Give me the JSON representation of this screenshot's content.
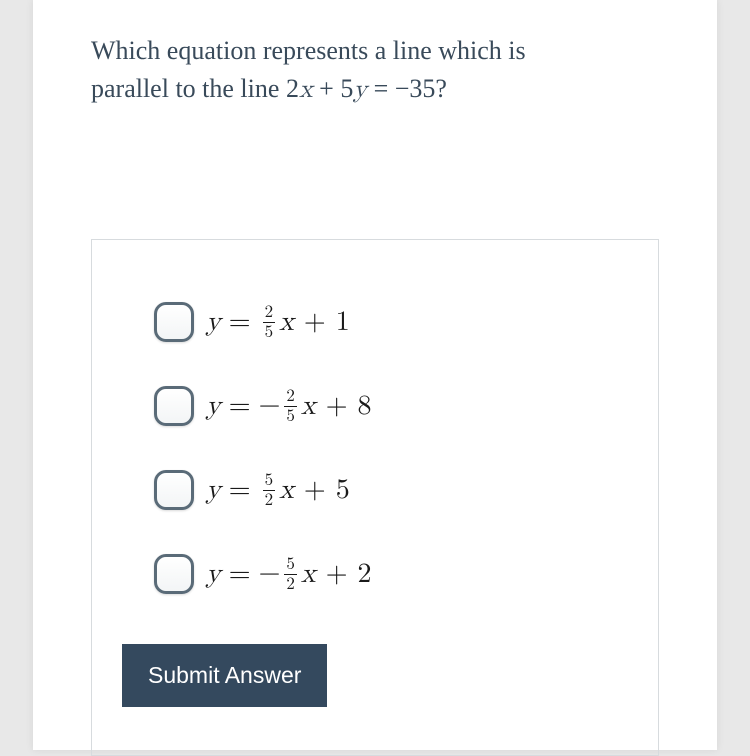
{
  "question": {
    "line1": "Which equation represents a line which is",
    "line2_pre": "parallel to the line ",
    "eq_a": "2",
    "eq_x": "x",
    "eq_plus": " + ",
    "eq_b": "5",
    "eq_y": "y",
    "eq_eq": " = ",
    "eq_neg": "−",
    "eq_c": "35",
    "eq_q": "?"
  },
  "options": [
    {
      "y": "y",
      "eq": "=",
      "neg": "",
      "num": "2",
      "den": "5",
      "x": "x",
      "plus": "+",
      "c": "1"
    },
    {
      "y": "y",
      "eq": "=",
      "neg": "−",
      "num": "2",
      "den": "5",
      "x": "x",
      "plus": "+",
      "c": "8"
    },
    {
      "y": "y",
      "eq": "=",
      "neg": "",
      "num": "5",
      "den": "2",
      "x": "x",
      "plus": "+",
      "c": "5"
    },
    {
      "y": "y",
      "eq": "=",
      "neg": "−",
      "num": "5",
      "den": "2",
      "x": "x",
      "plus": "+",
      "c": "2"
    }
  ],
  "submit_label": "Submit Answer",
  "colors": {
    "page_bg": "#ffffff",
    "body_bg": "#e8e8e8",
    "question_text": "#394a5a",
    "box_border": "#d7dbde",
    "checkbox_border": "#5a6b78",
    "button_bg": "#34495e",
    "button_text": "#ffffff"
  }
}
